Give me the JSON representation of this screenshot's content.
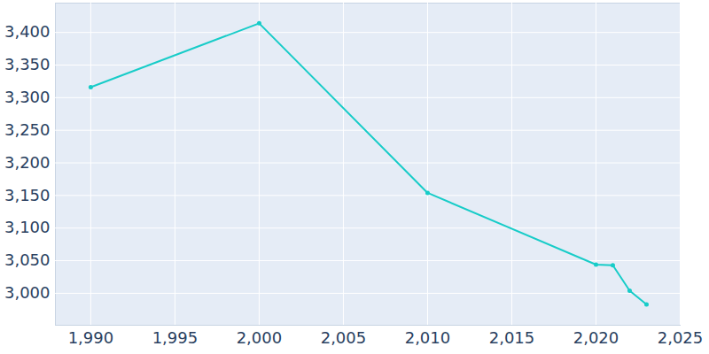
{
  "chart_data": {
    "type": "line",
    "x": [
      1990,
      2000,
      2010,
      2020,
      2021,
      2022,
      2023
    ],
    "values": [
      3316,
      3414,
      3154,
      3044,
      3043,
      3004,
      2983
    ],
    "color": "#17ccc8",
    "marker": "circle",
    "xlim": [
      1987.9,
      2025
    ],
    "xticks": [
      1990,
      1995,
      2000,
      2005,
      2010,
      2015,
      2020,
      2025
    ],
    "ylim": [
      2951,
      3445
    ],
    "yticks": [
      3000,
      3050,
      3100,
      3150,
      3200,
      3250,
      3300,
      3350,
      3400
    ],
    "grid": true
  }
}
